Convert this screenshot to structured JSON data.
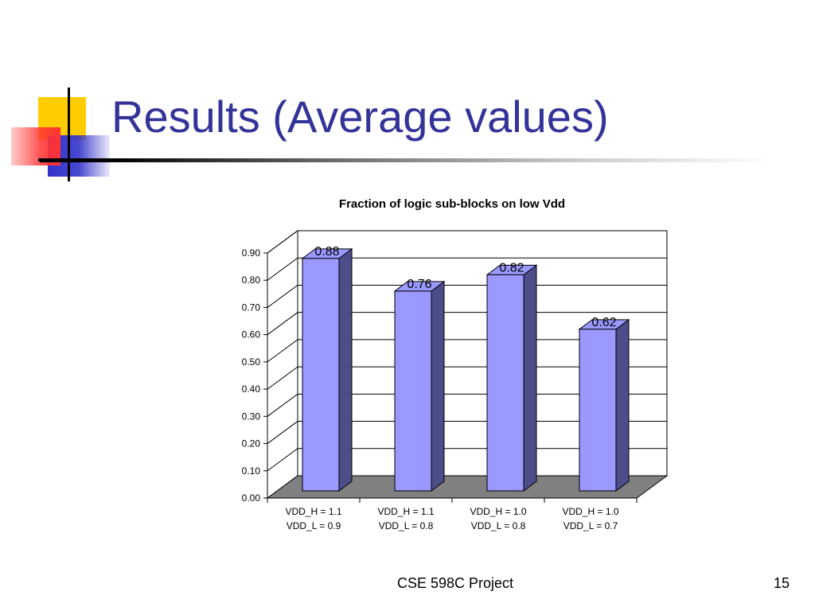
{
  "slide": {
    "title": "Results (Average values)",
    "footer_text": "CSE 598C Project",
    "page_number": "15"
  },
  "colors": {
    "title": "#333399",
    "bar_front": "#9999ff",
    "bar_side": "#4d4d8a",
    "floor": "#808080",
    "logo_yellow": "#ffcc00",
    "logo_red": "#ff3333",
    "logo_blue": "#3333cc"
  },
  "chart_data": {
    "type": "bar",
    "title": "Fraction of logic sub-blocks on low Vdd",
    "categories": [
      [
        "VDD_H = 1.1",
        "VDD_L = 0.9"
      ],
      [
        "VDD_H = 1.1",
        "VDD_L = 0.8"
      ],
      [
        "VDD_H = 1.0",
        "VDD_L = 0.8"
      ],
      [
        "VDD_H = 1.0",
        "VDD_L = 0.7"
      ]
    ],
    "values": [
      0.88,
      0.76,
      0.82,
      0.62
    ],
    "data_labels": [
      "0.88",
      "0.76",
      "0.82",
      "0.62"
    ],
    "ylim": [
      0,
      0.9
    ],
    "yticks": [
      "0.00",
      "0.10",
      "0.20",
      "0.30",
      "0.40",
      "0.50",
      "0.60",
      "0.70",
      "0.80",
      "0.90"
    ],
    "grid": true,
    "style": "3d",
    "legend": "none"
  }
}
